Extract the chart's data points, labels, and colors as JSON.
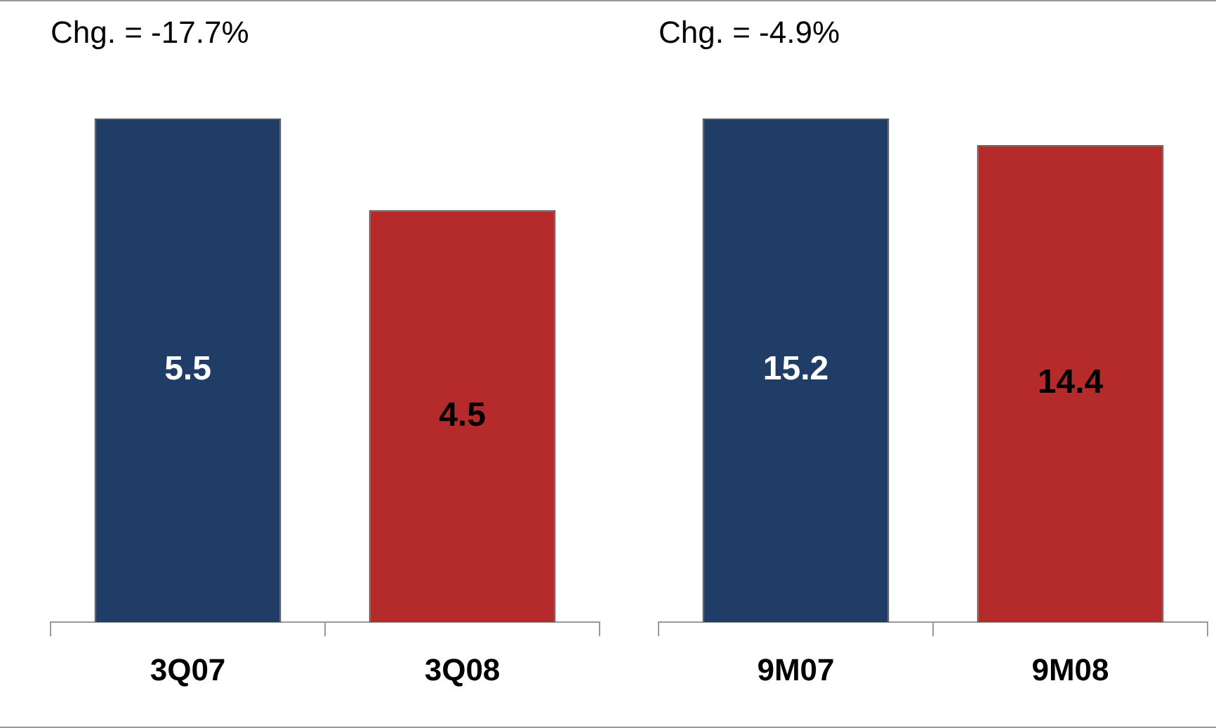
{
  "chart_data": [
    {
      "type": "bar",
      "title": "Chg. = -17.7%",
      "categories": [
        "3Q07",
        "3Q08"
      ],
      "values": [
        5.5,
        4.5
      ],
      "colors": [
        "#1f3d66",
        "#b52a2a"
      ],
      "data_labels": true,
      "grid": false,
      "legend": false
    },
    {
      "type": "bar",
      "title": "Chg. = -4.9%",
      "categories": [
        "9M07",
        "9M08"
      ],
      "values": [
        15.2,
        14.4
      ],
      "colors": [
        "#1f3d66",
        "#b52a2a"
      ],
      "data_labels": true,
      "grid": false,
      "legend": false
    }
  ]
}
